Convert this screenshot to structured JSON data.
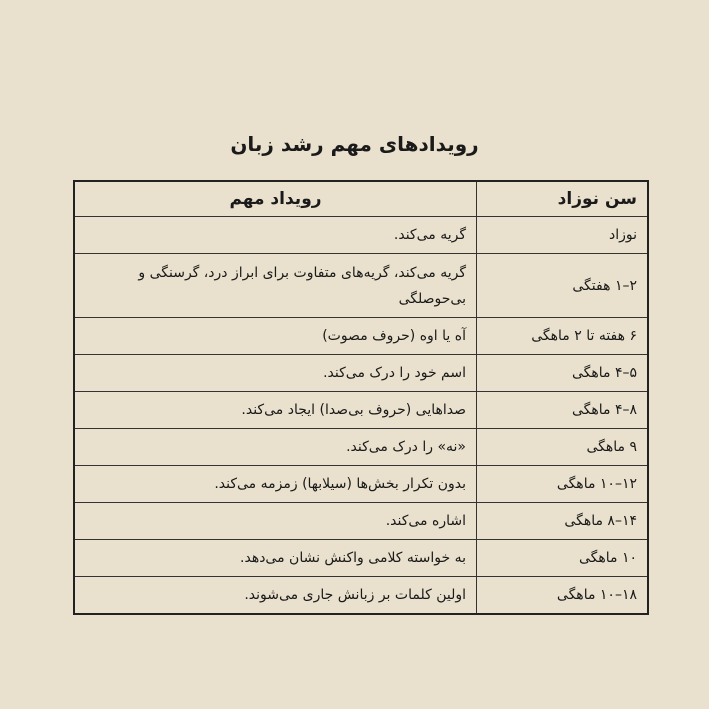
{
  "title": "رویدادهای مهم رشد زبان",
  "table": {
    "headers": {
      "age": "سن نوزاد",
      "event": "رویداد مهم"
    },
    "rows": [
      {
        "age": "نوزاد",
        "event": "گریه می‌کند."
      },
      {
        "age": "۲–۱ هفتگی",
        "event": "گریه می‌کند، گریه‌های متفاوت برای ابراز درد، گرسنگی و بی‌حوصلگی"
      },
      {
        "age": "۶ هفته تا ۲ ماهگی",
        "event": "آه یا اوه (حروف مصوت)"
      },
      {
        "age": "۵–۴ ماهگی",
        "event": "اسم خود را درک می‌کند."
      },
      {
        "age": "۸–۴ ماهگی",
        "event": "صداهایی (حروف بی‌صدا) ایجاد می‌کند."
      },
      {
        "age": "۹ ماهگی",
        "event": "«نه» را درک می‌کند."
      },
      {
        "age": "۱۲–۱۰ ماهگی",
        "event": "بدون تکرار بخش‌ها (سیلابها) زمزمه می‌کند."
      },
      {
        "age": "۱۴–۸ ماهگی",
        "event": "اشاره می‌کند."
      },
      {
        "age": "۱۰ ماهگی",
        "event": "به خواسته کلامی واکنش نشان می‌دهد."
      },
      {
        "age": "۱۸–۱۰ ماهگی",
        "event": "اولین کلمات بر زبانش جاری می‌شوند."
      }
    ]
  }
}
